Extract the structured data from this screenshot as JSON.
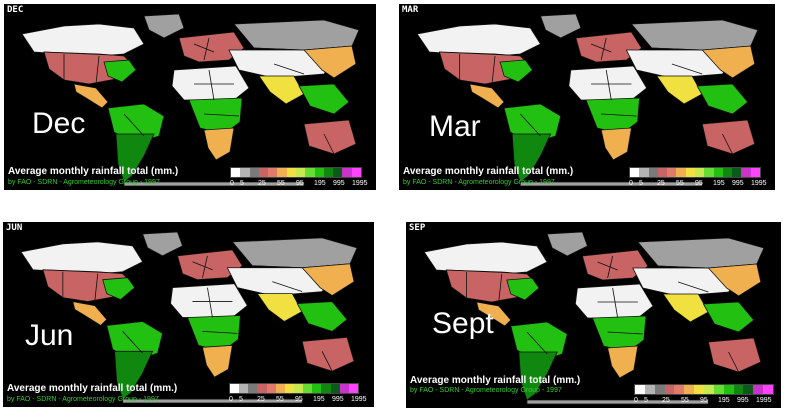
{
  "panels": [
    {
      "code": "DEC",
      "label": "Dec"
    },
    {
      "code": "MAR",
      "label": "Mar"
    },
    {
      "code": "JUN",
      "label": "Jun"
    },
    {
      "code": "SEP",
      "label": "Sept"
    }
  ],
  "legend": {
    "title": "Average monthly rainfall total (mm.)",
    "credit": "by FAO - SDRN - Agrometeorology Group - 1997",
    "ticks": [
      "0",
      "5",
      "25",
      "55",
      "95",
      "195",
      "995",
      "1995"
    ],
    "colors": [
      "#ffffff",
      "#b4b4b4",
      "#7a7a7a",
      "#c86464",
      "#e07a6a",
      "#f0b050",
      "#f0e040",
      "#c8e850",
      "#66dd33",
      "#22c010",
      "#108810",
      "#0a5a1a",
      "#cc33cc",
      "#ff44ff"
    ]
  },
  "map_colors": {
    "dry": "#f2f2f2",
    "grey": "#a0a0a0",
    "red": "#c86464",
    "orange": "#f0b050",
    "yellow": "#f0e040",
    "lightgreen": "#88dd44",
    "green": "#22c010",
    "darkgreen": "#108810",
    "border": "#111111"
  }
}
